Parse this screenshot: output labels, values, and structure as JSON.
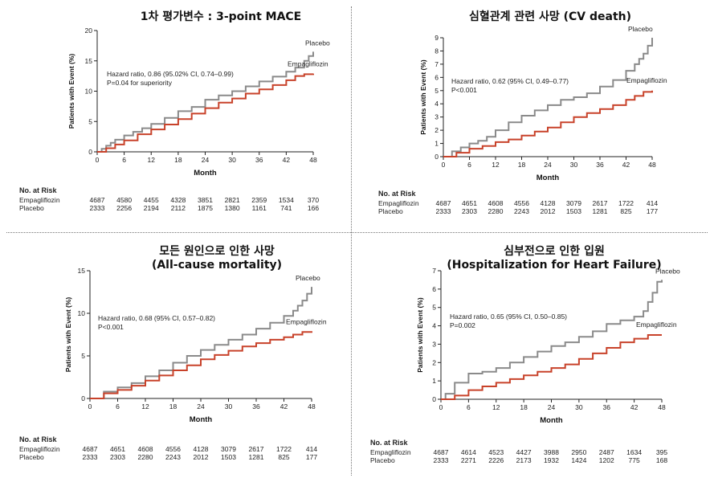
{
  "colors": {
    "placebo": "#8a8a8a",
    "empagliflozin": "#c8422a",
    "axis": "#222222"
  },
  "chart_data": [
    {
      "type": "line",
      "title": "1차 평가변수 : 3-point MACE",
      "xlabel": "Month",
      "ylabel": "Patients with Event (%)",
      "xlim": [
        0,
        48
      ],
      "ylim": [
        0,
        20
      ],
      "xticks": [
        0,
        6,
        12,
        18,
        24,
        30,
        36,
        42,
        48
      ],
      "yticks": [
        0,
        5,
        10,
        15,
        20
      ],
      "annotation": [
        "Hazard ratio, 0.86 (95.02% CI, 0.74–0.99)",
        "P=0.04 for superiority"
      ],
      "series": [
        {
          "name": "Placebo",
          "x": [
            0,
            1,
            2,
            3,
            4,
            6,
            8,
            10,
            12,
            15,
            18,
            21,
            24,
            27,
            30,
            33,
            36,
            39,
            42,
            44,
            46,
            47,
            48
          ],
          "y": [
            0,
            0.5,
            1.0,
            1.5,
            2.0,
            2.7,
            3.3,
            3.9,
            4.6,
            5.6,
            6.7,
            7.4,
            8.6,
            9.3,
            10.0,
            10.8,
            11.6,
            12.4,
            13.2,
            13.9,
            15.0,
            15.8,
            16.5
          ]
        },
        {
          "name": "Empagliflozin",
          "x": [
            0,
            2,
            4,
            6,
            9,
            12,
            15,
            18,
            21,
            24,
            27,
            30,
            33,
            36,
            39,
            42,
            44,
            46,
            48
          ],
          "y": [
            0,
            0.6,
            1.2,
            1.9,
            2.9,
            3.7,
            4.5,
            5.4,
            6.3,
            7.2,
            8.1,
            8.8,
            9.6,
            10.3,
            11.0,
            11.8,
            12.5,
            12.8,
            12.9
          ]
        }
      ],
      "risk_table": {
        "header": "No. at Risk",
        "rows": [
          {
            "label": "Empagliflozin",
            "values": [
              "4687",
              "4580",
              "4455",
              "4328",
              "3851",
              "2821",
              "2359",
              "1534",
              "370"
            ]
          },
          {
            "label": "Placebo",
            "values": [
              "2333",
              "2256",
              "2194",
              "2112",
              "1875",
              "1380",
              "1161",
              "741",
              "166"
            ]
          }
        ]
      }
    },
    {
      "type": "line",
      "title": "심혈관계 관련 사망 (CV death)",
      "xlabel": "Month",
      "ylabel": "Patients with Event (%)",
      "xlim": [
        0,
        48
      ],
      "ylim": [
        0,
        9
      ],
      "xticks": [
        0,
        6,
        12,
        18,
        24,
        30,
        36,
        42,
        48
      ],
      "yticks": [
        0,
        1,
        2,
        3,
        4,
        5,
        6,
        7,
        8,
        9
      ],
      "annotation": [
        "Hazard ratio, 0.62 (95% CI, 0.49–0.77)",
        "P<0.001"
      ],
      "series": [
        {
          "name": "Placebo",
          "x": [
            0,
            2,
            4,
            6,
            8,
            10,
            12,
            15,
            18,
            21,
            24,
            27,
            30,
            33,
            36,
            39,
            42,
            44,
            45,
            46,
            47,
            48
          ],
          "y": [
            0,
            0.4,
            0.7,
            1.0,
            1.2,
            1.5,
            2.0,
            2.6,
            3.1,
            3.5,
            3.9,
            4.3,
            4.5,
            4.8,
            5.3,
            5.8,
            6.5,
            7.0,
            7.4,
            7.8,
            8.4,
            9.0
          ]
        },
        {
          "name": "Empagliflozin",
          "x": [
            0,
            3,
            6,
            9,
            12,
            15,
            18,
            21,
            24,
            27,
            30,
            33,
            36,
            39,
            42,
            44,
            46,
            48
          ],
          "y": [
            0,
            0.3,
            0.6,
            0.8,
            1.1,
            1.3,
            1.6,
            1.9,
            2.2,
            2.6,
            3.0,
            3.3,
            3.6,
            3.9,
            4.3,
            4.6,
            4.9,
            5.0
          ]
        }
      ],
      "risk_table": {
        "header": "No. at Risk",
        "rows": [
          {
            "label": "Empagliflozin",
            "values": [
              "4687",
              "4651",
              "4608",
              "4556",
              "4128",
              "3079",
              "2617",
              "1722",
              "414"
            ]
          },
          {
            "label": "Placebo",
            "values": [
              "2333",
              "2303",
              "2280",
              "2243",
              "2012",
              "1503",
              "1281",
              "825",
              "177"
            ]
          }
        ]
      }
    },
    {
      "type": "line",
      "title": "모든 원인으로 인한 사망",
      "subtitle": "(All-cause mortality)",
      "xlabel": "Month",
      "ylabel": "Patients with Event (%)",
      "xlim": [
        0,
        48
      ],
      "ylim": [
        0,
        15
      ],
      "xticks": [
        0,
        6,
        12,
        18,
        24,
        30,
        36,
        42,
        48
      ],
      "yticks": [
        0,
        5,
        10,
        15
      ],
      "annotation": [
        "Hazard ratio, 0.68 (95% CI, 0.57–0.82)",
        "P<0.001"
      ],
      "series": [
        {
          "name": "Placebo",
          "x": [
            0,
            3,
            6,
            9,
            12,
            15,
            18,
            21,
            24,
            27,
            30,
            33,
            36,
            39,
            42,
            44,
            45,
            46,
            47,
            48
          ],
          "y": [
            0,
            0.8,
            1.3,
            1.8,
            2.6,
            3.3,
            4.2,
            5.0,
            5.7,
            6.3,
            6.9,
            7.5,
            8.2,
            8.9,
            9.7,
            10.3,
            10.9,
            11.5,
            12.3,
            13.1
          ]
        },
        {
          "name": "Empagliflozin",
          "x": [
            0,
            3,
            6,
            9,
            12,
            15,
            18,
            21,
            24,
            27,
            30,
            33,
            36,
            39,
            42,
            44,
            46,
            48
          ],
          "y": [
            0,
            0.6,
            1.0,
            1.5,
            2.1,
            2.7,
            3.3,
            3.9,
            4.6,
            5.1,
            5.6,
            6.1,
            6.5,
            6.9,
            7.2,
            7.5,
            7.8,
            7.9
          ]
        }
      ],
      "risk_table": {
        "header": "No. at Risk",
        "rows": [
          {
            "label": "Empagliflozin",
            "values": [
              "4687",
              "4651",
              "4608",
              "4556",
              "4128",
              "3079",
              "2617",
              "1722",
              "414"
            ]
          },
          {
            "label": "Placebo",
            "values": [
              "2333",
              "2303",
              "2280",
              "2243",
              "2012",
              "1503",
              "1281",
              "825",
              "177"
            ]
          }
        ]
      }
    },
    {
      "type": "line",
      "title": "심부전으로 인한 입원",
      "subtitle": "(Hospitalization for Heart Failure)",
      "xlabel": "Month",
      "ylabel": "Patients with Event (%)",
      "xlim": [
        0,
        48
      ],
      "ylim": [
        0,
        7
      ],
      "xticks": [
        0,
        6,
        12,
        18,
        24,
        30,
        36,
        42,
        48
      ],
      "yticks": [
        0,
        1,
        2,
        3,
        4,
        5,
        6,
        7
      ],
      "annotation": [
        "Hazard ratio, 0.65 (95% CI, 0.50–0.85)",
        "P=0.002"
      ],
      "series": [
        {
          "name": "Placebo",
          "x": [
            0,
            1,
            3,
            6,
            9,
            12,
            15,
            18,
            21,
            24,
            27,
            30,
            33,
            36,
            39,
            42,
            44,
            45,
            46,
            47,
            48
          ],
          "y": [
            0,
            0.3,
            0.9,
            1.4,
            1.5,
            1.7,
            2.0,
            2.3,
            2.6,
            2.9,
            3.1,
            3.4,
            3.7,
            4.1,
            4.3,
            4.5,
            4.8,
            5.3,
            5.8,
            6.4,
            6.5
          ]
        },
        {
          "name": "Empagliflozin",
          "x": [
            0,
            3,
            6,
            9,
            12,
            15,
            18,
            21,
            24,
            27,
            30,
            33,
            36,
            39,
            42,
            45,
            48
          ],
          "y": [
            0,
            0.2,
            0.5,
            0.7,
            0.9,
            1.1,
            1.3,
            1.5,
            1.7,
            1.9,
            2.2,
            2.5,
            2.8,
            3.1,
            3.3,
            3.5,
            3.5
          ]
        }
      ],
      "risk_table": {
        "header": "No. at Risk",
        "rows": [
          {
            "label": "Empagliflozin",
            "values": [
              "4687",
              "4614",
              "4523",
              "4427",
              "3988",
              "2950",
              "2487",
              "1634",
              "395"
            ]
          },
          {
            "label": "Placebo",
            "values": [
              "2333",
              "2271",
              "2226",
              "2173",
              "1932",
              "1424",
              "1202",
              "775",
              "168"
            ]
          }
        ]
      }
    }
  ]
}
